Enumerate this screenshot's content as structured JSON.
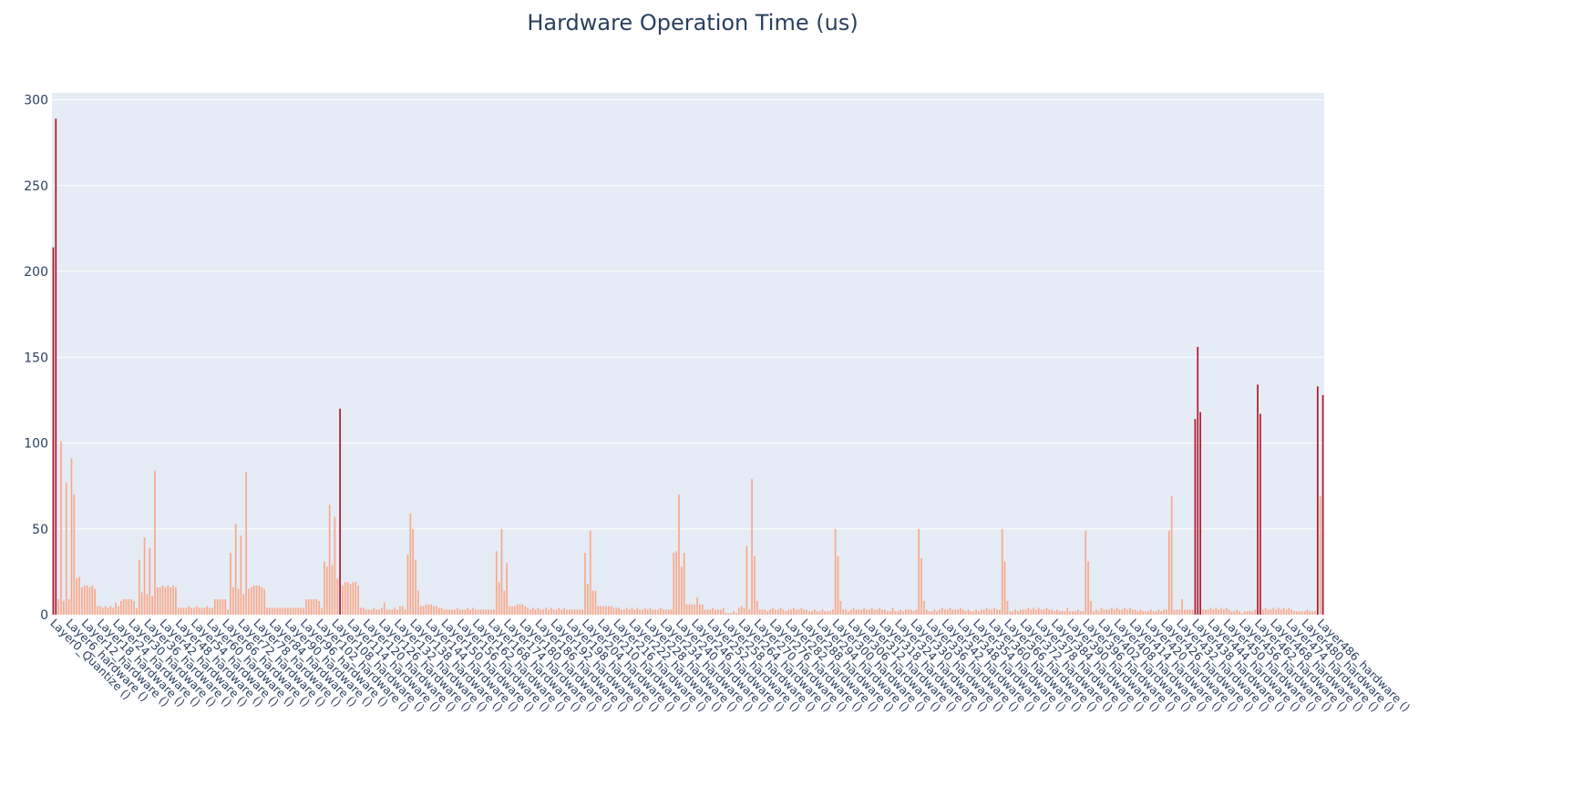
{
  "chart_data": {
    "type": "bar",
    "title": "Hardware Operation Time (us)",
    "categories": [
      "Layer0_Quantize ()",
      null,
      null,
      null,
      null,
      null,
      "Layer6_hardware ()",
      null,
      null,
      null,
      null,
      null,
      "Layer12_hardware ()",
      null,
      null,
      null,
      null,
      null,
      "Layer18_hardware ()",
      null,
      null,
      null,
      null,
      null,
      "Layer24_hardware ()",
      null,
      null,
      null,
      null,
      null,
      "Layer30_hardware ()",
      null,
      null,
      null,
      null,
      null,
      "Layer36_hardware ()",
      null,
      null,
      null,
      null,
      null,
      "Layer42_hardware ()",
      null,
      null,
      null,
      null,
      null,
      "Layer48_hardware ()",
      null,
      null,
      null,
      null,
      null,
      "Layer54_hardware ()",
      null,
      null,
      null,
      null,
      null,
      "Layer60_hardware ()",
      null,
      null,
      null,
      null,
      null,
      "Layer66_hardware ()",
      null,
      null,
      null,
      null,
      null,
      "Layer72_hardware ()",
      null,
      null,
      null,
      null,
      null,
      "Layer78_hardware ()",
      null,
      null,
      null,
      null,
      null,
      "Layer84_hardware ()",
      null,
      null,
      null,
      null,
      null,
      "Layer90_hardware ()",
      null,
      null,
      null,
      null,
      null,
      "Layer96_hardware ()",
      null,
      null,
      null,
      null,
      null,
      "Layer102_hardware ()",
      null,
      null,
      null,
      null,
      null,
      "Layer108_hardware ()",
      null,
      null,
      null,
      null,
      null,
      "Layer114_hardware ()",
      null,
      null,
      null,
      null,
      null,
      "Layer120_hardware ()",
      null,
      null,
      null,
      null,
      null,
      "Layer126_hardware ()",
      null,
      null,
      null,
      null,
      null,
      "Layer132_hardware ()",
      null,
      null,
      null,
      null,
      null,
      "Layer138_hardware ()",
      null,
      null,
      null,
      null,
      null,
      "Layer144_hardware ()",
      null,
      null,
      null,
      null,
      null,
      "Layer150_hardware ()",
      null,
      null,
      null,
      null,
      null,
      "Layer156_hardware ()",
      null,
      null,
      null,
      null,
      null,
      "Layer162_hardware ()",
      null,
      null,
      null,
      null,
      null,
      "Layer168_hardware ()",
      null,
      null,
      null,
      null,
      null,
      "Layer174_hardware ()",
      null,
      null,
      null,
      null,
      null,
      "Layer180_hardware ()",
      null,
      null,
      null,
      null,
      null,
      "Layer186_hardware ()",
      null,
      null,
      null,
      null,
      null,
      "Layer192_hardware ()",
      null,
      null,
      null,
      null,
      null,
      "Layer198_hardware ()",
      null,
      null,
      null,
      null,
      null,
      "Layer204_hardware ()",
      null,
      null,
      null,
      null,
      null,
      "Layer210_hardware ()",
      null,
      null,
      null,
      null,
      null,
      "Layer216_hardware ()",
      null,
      null,
      null,
      null,
      null,
      "Layer222_hardware ()",
      null,
      null,
      null,
      null,
      null,
      "Layer228_hardware ()",
      null,
      null,
      null,
      null,
      null,
      "Layer234_hardware ()",
      null,
      null,
      null,
      null,
      null,
      "Layer240_hardware ()",
      null,
      null,
      null,
      null,
      null,
      "Layer246_hardware ()",
      null,
      null,
      null,
      null,
      null,
      "Layer252_hardware ()",
      null,
      null,
      null,
      null,
      null,
      "Layer258_hardware ()",
      null,
      null,
      null,
      null,
      null,
      "Layer264_hardware ()",
      null,
      null,
      null,
      null,
      null,
      "Layer270_hardware ()",
      null,
      null,
      null,
      null,
      null,
      "Layer276_hardware ()",
      null,
      null,
      null,
      null,
      null,
      "Layer282_hardware ()",
      null,
      null,
      null,
      null,
      null,
      "Layer288_hardware ()",
      null,
      null,
      null,
      null,
      null,
      "Layer294_hardware ()",
      null,
      null,
      null,
      null,
      null,
      "Layer300_hardware ()",
      null,
      null,
      null,
      null,
      null,
      "Layer306_hardware ()",
      null,
      null,
      null,
      null,
      null,
      "Layer312_hardware ()",
      null,
      null,
      null,
      null,
      null,
      "Layer318_hardware ()",
      null,
      null,
      null,
      null,
      null,
      "Layer324_hardware ()",
      null,
      null,
      null,
      null,
      null,
      "Layer330_hardware ()",
      null,
      null,
      null,
      null,
      null,
      "Layer336_hardware ()",
      null,
      null,
      null,
      null,
      null,
      "Layer342_hardware ()",
      null,
      null,
      null,
      null,
      null,
      "Layer348_hardware ()",
      null,
      null,
      null,
      null,
      null,
      "Layer354_hardware ()",
      null,
      null,
      null,
      null,
      null,
      "Layer360_hardware ()",
      null,
      null,
      null,
      null,
      null,
      "Layer366_hardware ()",
      null,
      null,
      null,
      null,
      null,
      "Layer372_hardware ()",
      null,
      null,
      null,
      null,
      null,
      "Layer378_hardware ()",
      null,
      null,
      null,
      null,
      null,
      "Layer384_hardware ()",
      null,
      null,
      null,
      null,
      null,
      "Layer390_hardware ()",
      null,
      null,
      null,
      null,
      null,
      "Layer396_hardware ()",
      null,
      null,
      null,
      null,
      null,
      "Layer402_hardware ()",
      null,
      null,
      null,
      null,
      null,
      "Layer408_hardware ()",
      null,
      null,
      null,
      null,
      null,
      "Layer414_hardware ()",
      null,
      null,
      null,
      null,
      null,
      "Layer420_hardware ()",
      null,
      null,
      null,
      null,
      null,
      "Layer426_hardware ()",
      null,
      null,
      null,
      null,
      null,
      "Layer432_hardware ()",
      null,
      null,
      null,
      null,
      null,
      "Layer438_hardware ()",
      null,
      null,
      null,
      null,
      null,
      "Layer444_hardware ()",
      null,
      null,
      null,
      null,
      null,
      "Layer450_hardware ()",
      null,
      null,
      null,
      null,
      null,
      "Layer456_hardware ()",
      null,
      null,
      null,
      null,
      null,
      "Layer462_hardware ()",
      null,
      null,
      null,
      null,
      null,
      "Layer468_hardware ()",
      null,
      null,
      null,
      null,
      null,
      "Layer474_hardware ()",
      null,
      null,
      null,
      null,
      null,
      "Layer480_hardware ()",
      null,
      null,
      null,
      null,
      null,
      "Layer486_hardware ()",
      null
    ],
    "values": [
      214,
      289,
      9,
      101,
      8,
      77,
      9,
      91,
      70,
      21,
      22,
      16,
      17,
      17,
      16,
      17,
      15,
      5,
      5,
      4,
      5,
      4,
      5,
      4,
      7,
      5,
      8,
      9,
      9,
      9,
      9,
      8,
      4,
      32,
      13,
      45,
      12,
      39,
      11,
      84,
      16,
      16,
      17,
      16,
      17,
      16,
      17,
      16,
      4,
      4,
      4,
      4,
      5,
      4,
      4,
      5,
      4,
      4,
      4,
      5,
      4,
      4,
      9,
      9,
      9,
      9,
      9,
      3,
      36,
      16,
      53,
      15,
      46,
      12,
      83,
      15,
      16,
      17,
      17,
      17,
      16,
      15,
      4,
      4,
      4,
      4,
      4,
      4,
      4,
      4,
      4,
      4,
      4,
      4,
      4,
      4,
      4,
      9,
      9,
      9,
      9,
      9,
      8,
      4,
      31,
      28,
      64,
      29,
      57,
      21,
      120,
      17,
      19,
      19,
      18,
      19,
      19,
      17,
      4,
      4,
      3,
      3,
      3,
      4,
      3,
      3,
      4,
      7,
      3,
      3,
      3,
      4,
      3,
      5,
      5,
      3,
      35,
      59,
      50,
      32,
      14,
      5,
      5,
      6,
      6,
      6,
      5,
      5,
      4,
      4,
      3,
      3,
      3,
      3,
      3,
      4,
      3,
      3,
      3,
      4,
      3,
      4,
      3,
      3,
      3,
      3,
      3,
      3,
      3,
      3,
      37,
      19,
      50,
      14,
      30,
      5,
      5,
      5,
      6,
      6,
      6,
      5,
      4,
      3,
      4,
      3,
      4,
      3,
      3,
      4,
      3,
      4,
      3,
      3,
      4,
      3,
      4,
      3,
      3,
      3,
      3,
      3,
      3,
      3,
      36,
      18,
      49,
      14,
      14,
      5,
      5,
      5,
      5,
      5,
      5,
      4,
      4,
      4,
      3,
      3,
      4,
      3,
      4,
      3,
      4,
      3,
      3,
      4,
      3,
      4,
      3,
      3,
      3,
      4,
      3,
      3,
      3,
      3,
      36,
      37,
      70,
      28,
      36,
      6,
      6,
      6,
      6,
      10,
      6,
      6,
      3,
      3,
      3,
      4,
      3,
      3,
      3,
      4,
      1,
      1,
      1,
      2,
      1,
      4,
      5,
      4,
      40,
      3,
      79,
      34,
      8,
      3,
      3,
      3,
      2,
      3,
      4,
      3,
      3,
      4,
      3,
      2,
      3,
      3,
      4,
      3,
      3,
      4,
      3,
      3,
      2,
      2,
      3,
      2,
      2,
      3,
      2,
      2,
      2,
      3,
      50,
      34,
      8,
      3,
      3,
      2,
      3,
      4,
      3,
      3,
      3,
      4,
      3,
      3,
      4,
      3,
      3,
      4,
      3,
      3,
      2,
      2,
      4,
      2,
      2,
      3,
      2,
      3,
      3,
      3,
      2,
      3,
      50,
      33,
      8,
      3,
      2,
      2,
      3,
      2,
      3,
      4,
      3,
      3,
      4,
      3,
      3,
      3,
      4,
      3,
      2,
      3,
      2,
      2,
      3,
      2,
      3,
      3,
      4,
      3,
      3,
      4,
      3,
      3,
      50,
      31,
      8,
      2,
      2,
      3,
      2,
      3,
      3,
      3,
      4,
      3,
      4,
      3,
      4,
      3,
      3,
      4,
      3,
      3,
      2,
      3,
      2,
      2,
      2,
      4,
      2,
      2,
      2,
      3,
      2,
      2,
      49,
      31,
      8,
      2,
      3,
      2,
      4,
      3,
      3,
      3,
      4,
      3,
      4,
      3,
      3,
      4,
      3,
      4,
      3,
      3,
      2,
      3,
      2,
      2,
      2,
      3,
      2,
      2,
      3,
      2,
      3,
      3,
      49,
      69,
      3,
      3,
      3,
      9,
      3,
      3,
      3,
      3,
      114,
      156,
      118,
      3,
      3,
      3,
      4,
      3,
      4,
      3,
      4,
      3,
      4,
      3,
      2,
      2,
      3,
      2,
      1,
      2,
      2,
      2,
      2,
      3,
      134,
      117,
      3,
      4,
      3,
      3,
      4,
      3,
      4,
      3,
      4,
      3,
      4,
      3,
      2,
      2,
      2,
      2,
      2,
      3,
      2,
      2,
      2,
      133,
      69,
      128
    ],
    "color": "#f9a98a",
    "color_above": {
      "threshold": 110,
      "color": "#b2182b"
    },
    "ylim": [
      0,
      304
    ],
    "yticks": [
      0,
      50,
      100,
      150,
      200,
      250,
      300
    ],
    "grid": true
  }
}
